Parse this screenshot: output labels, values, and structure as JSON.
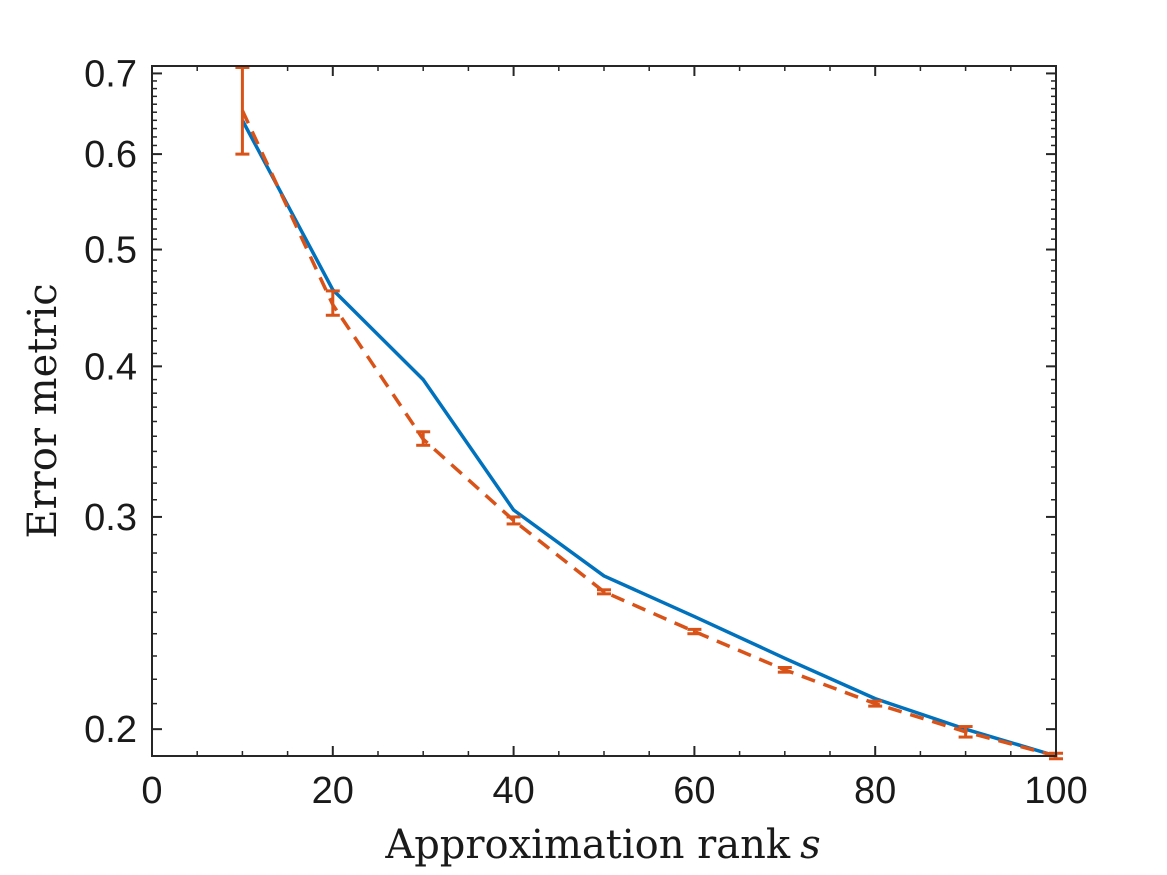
{
  "chart_data": {
    "type": "line",
    "xlabel": "Approximation rank",
    "xlabel_symbol": "s",
    "ylabel": "Error metric",
    "xlim": [
      0,
      100
    ],
    "ylim": [
      0.19,
      0.71
    ],
    "yscale": "log",
    "grid": false,
    "box": true,
    "x_ticks": [
      0,
      20,
      40,
      60,
      80,
      100
    ],
    "x_tick_labels": [
      "0",
      "20",
      "40",
      "60",
      "80",
      "100"
    ],
    "y_ticks": [
      0.2,
      0.3,
      0.4,
      0.5,
      0.6,
      0.7
    ],
    "y_tick_labels": [
      "0.2",
      "0.3",
      "0.4",
      "0.5",
      "0.6",
      "0.7"
    ],
    "x": [
      10,
      20,
      30,
      40,
      50,
      60,
      70,
      80,
      90,
      100
    ],
    "series": [
      {
        "color": "#0072bd",
        "style": "solid",
        "values": [
          0.64,
          0.463,
          0.39,
          0.304,
          0.268,
          0.248,
          0.229,
          0.212,
          0.2,
          0.19
        ]
      },
      {
        "color": "#d95319",
        "style": "dashed",
        "values": [
          0.652,
          0.45,
          0.348,
          0.298,
          0.26,
          0.241,
          0.224,
          0.21,
          0.199,
          0.19
        ],
        "error_low": [
          0.6,
          0.441,
          0.344,
          0.296,
          0.259,
          0.24,
          0.223,
          0.209,
          0.197,
          0.189
        ],
        "error_high": [
          0.708,
          0.462,
          0.353,
          0.3,
          0.261,
          0.242,
          0.225,
          0.211,
          0.201,
          0.191
        ]
      }
    ]
  }
}
